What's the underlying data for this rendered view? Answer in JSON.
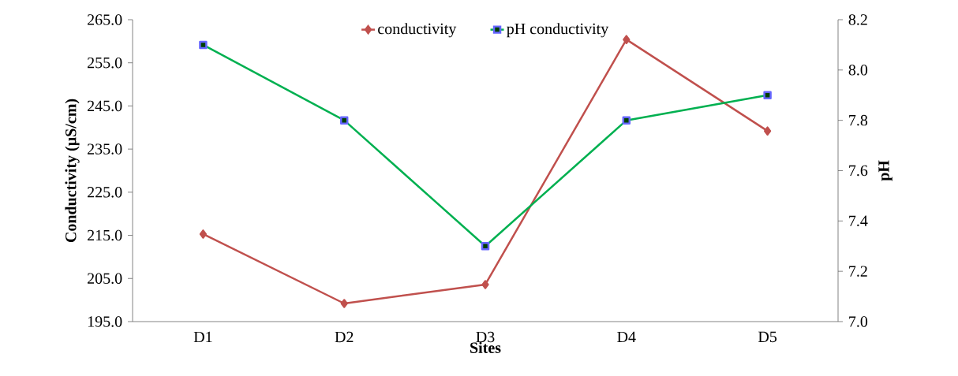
{
  "chart_data": {
    "type": "line",
    "xlabel": "Sites",
    "ylabel": "Conductivity (µS/cm)",
    "y2label": "pH",
    "categories": [
      "D1",
      "D2",
      "D3",
      "D4",
      "D5"
    ],
    "series": [
      {
        "name": "conductivity",
        "color": "#c0504d",
        "marker": "diamond",
        "values": [
          215.3,
          199.2,
          203.6,
          260.4,
          239.2
        ]
      },
      {
        "name": "pH conductivity",
        "color": "#00b050",
        "marker": "square",
        "axis": "y2",
        "values": [
          8.1,
          7.8,
          7.3,
          7.8,
          7.9
        ]
      }
    ],
    "ylim": [
      195,
      265
    ],
    "yticks": [
      {
        "value": 195,
        "label": "195.0"
      },
      {
        "value": 205,
        "label": "205.0"
      },
      {
        "value": 215,
        "label": "215.0"
      },
      {
        "value": 225,
        "label": "225.0"
      },
      {
        "value": 235,
        "label": "235.0"
      },
      {
        "value": 245,
        "label": "245.0"
      },
      {
        "value": 255,
        "label": "255.0"
      },
      {
        "value": 265,
        "label": "265.0"
      }
    ],
    "y2lim": [
      7,
      8.2
    ],
    "y2ticks": [
      {
        "value": 7,
        "label": "7.0"
      },
      {
        "value": 7.2,
        "label": "7.2"
      },
      {
        "value": 7.4,
        "label": "7.4"
      },
      {
        "value": 7.6,
        "label": "7.6"
      },
      {
        "value": 7.8,
        "label": "7.8"
      },
      {
        "value": 8,
        "label": "8.0"
      },
      {
        "value": 8.2,
        "label": "8.2"
      }
    ],
    "legend": "top",
    "grid": false
  }
}
